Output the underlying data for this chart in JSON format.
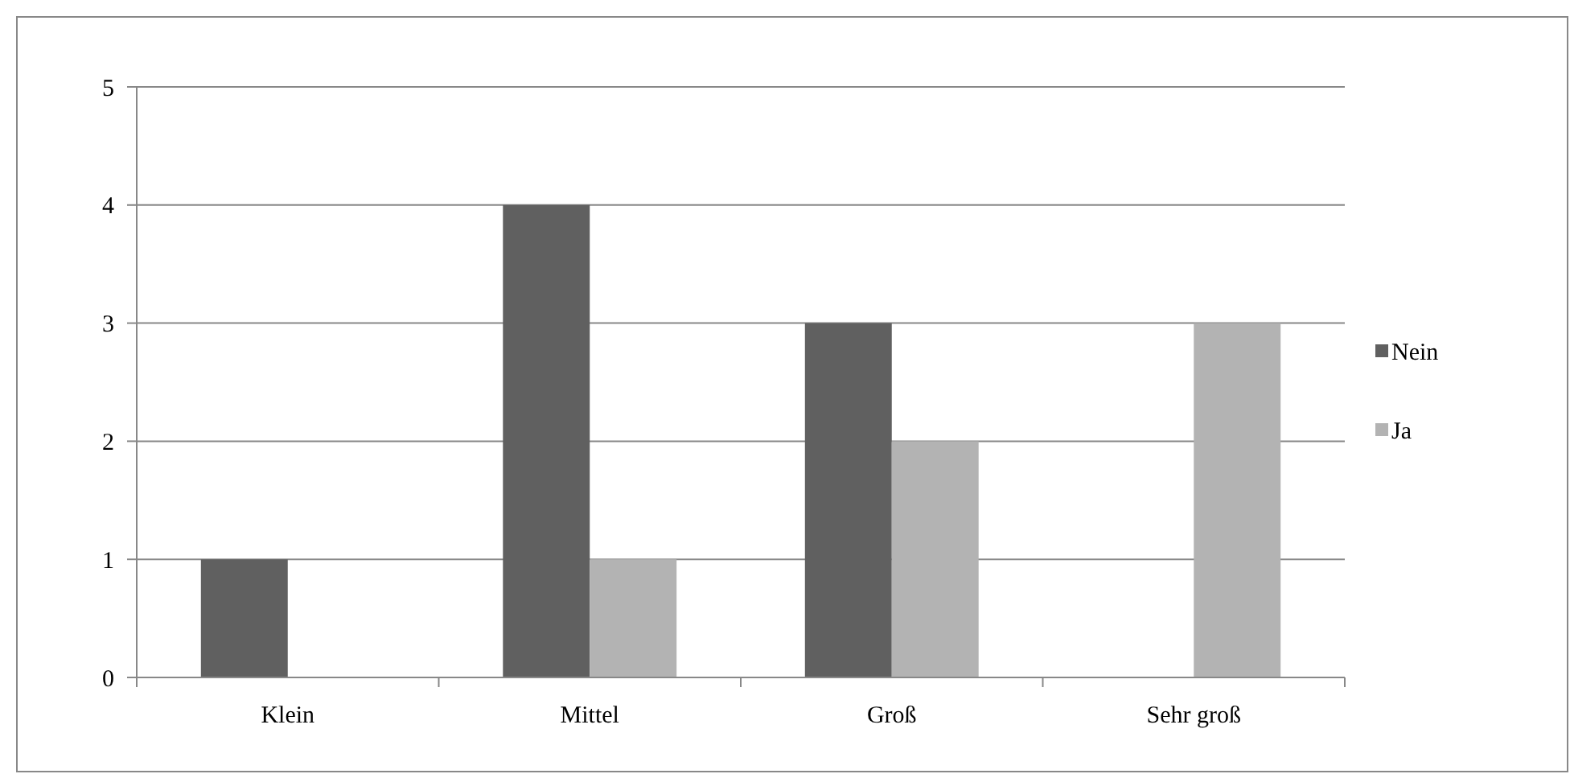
{
  "chart_data": {
    "type": "bar",
    "categories": [
      "Klein",
      "Mittel",
      "Groß",
      "Sehr groß"
    ],
    "series": [
      {
        "name": "Nein",
        "color": "#606060",
        "values": [
          1,
          4,
          3,
          0
        ]
      },
      {
        "name": "Ja",
        "color": "#b3b3b3",
        "values": [
          0,
          1,
          2,
          3
        ]
      }
    ],
    "ylim": [
      0,
      5
    ],
    "yticks": [
      0,
      1,
      2,
      3,
      4,
      5
    ],
    "grid": "y",
    "legend": "right"
  }
}
